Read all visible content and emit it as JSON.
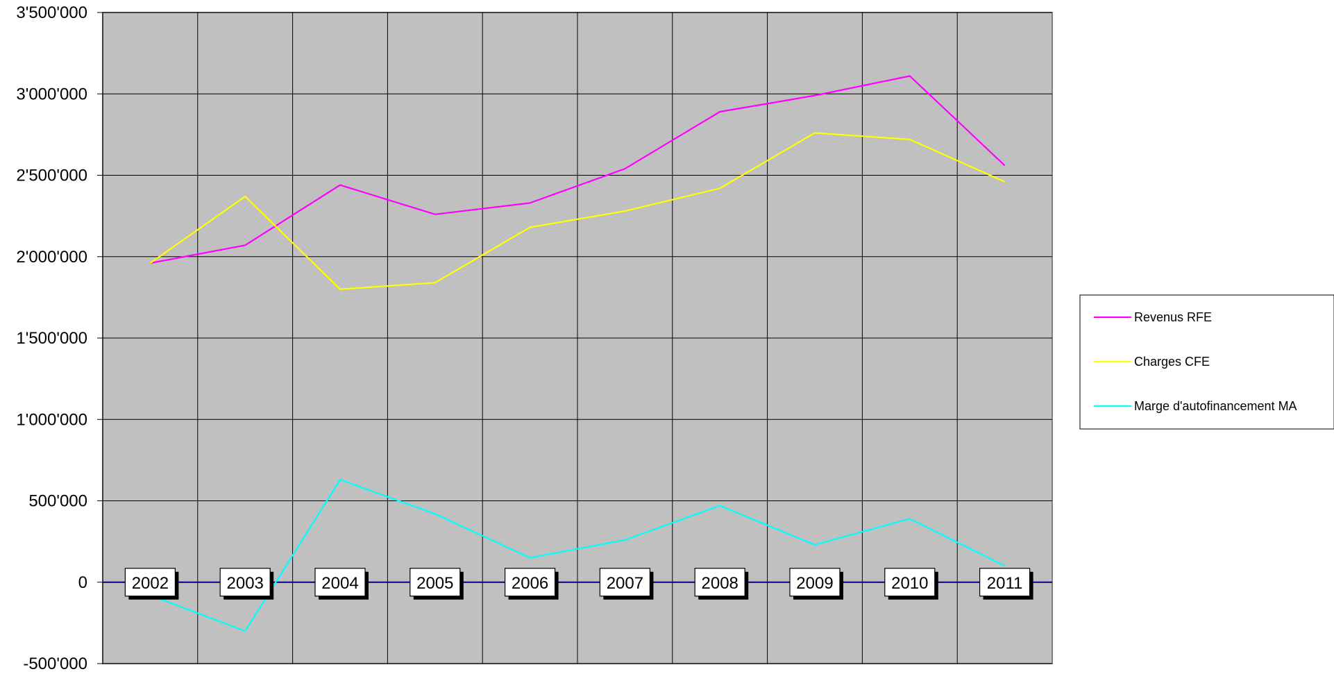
{
  "chart_data": {
    "type": "line",
    "categories": [
      "2002",
      "2003",
      "2004",
      "2005",
      "2006",
      "2007",
      "2008",
      "2009",
      "2010",
      "2011"
    ],
    "series": [
      {
        "name": "Revenus  RFE",
        "color": "#ff00ff",
        "values": [
          1960000,
          2070000,
          2440000,
          2260000,
          2330000,
          2540000,
          2890000,
          2990000,
          3110000,
          2560000
        ]
      },
      {
        "name": "Charges  CFE",
        "color": "#ffff00",
        "values": [
          1960000,
          2370000,
          1800000,
          1840000,
          2180000,
          2280000,
          2420000,
          2760000,
          2720000,
          2460000
        ]
      },
      {
        "name": "Marge d'autofinancement MA",
        "color": "#00ffff",
        "values": [
          -80000,
          -300000,
          630000,
          420000,
          150000,
          260000,
          470000,
          230000,
          390000,
          100000
        ]
      }
    ],
    "ylim": [
      -500000,
      3500000
    ],
    "yticks": [
      -500000,
      0,
      500000,
      1000000,
      1500000,
      2000000,
      2500000,
      3000000,
      3500000
    ],
    "ytick_labels": [
      "-500'000",
      "0",
      "500'000",
      "1'000'000",
      "1'500'000",
      "2'000'000",
      "2'500'000",
      "3'000'000",
      "3'500'000"
    ],
    "grid": true,
    "plot_background": "#c0c0c0",
    "legend_position": "right",
    "title": "",
    "xlabel": "",
    "ylabel": ""
  }
}
